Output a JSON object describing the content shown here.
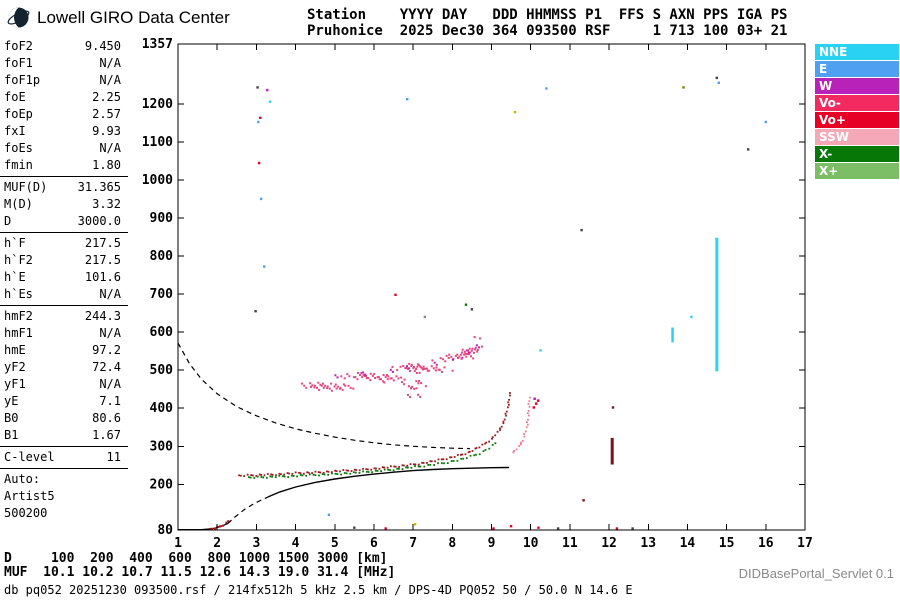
{
  "brand": {
    "title": "Lowell GIRO Data Center"
  },
  "station_header": {
    "line1": "Station    YYYY DAY   DDD HHMMSS P1  FFS S AXN PPS IGA PS",
    "line2": "Pruhonice  2025 Dec30 364 093500 RSF     1 713 100 03+ 21"
  },
  "params": {
    "groups": [
      {
        "rows": [
          [
            "foF2",
            "9.450"
          ],
          [
            "foF1",
            "N/A"
          ],
          [
            "foF1p",
            "N/A"
          ],
          [
            "foE",
            "2.25"
          ],
          [
            "foEp",
            "2.57"
          ],
          [
            "fxI",
            "9.93"
          ],
          [
            "foEs",
            "N/A"
          ],
          [
            "fmin",
            "1.80"
          ]
        ]
      },
      {
        "rows": [
          [
            "MUF(D)",
            "31.365"
          ],
          [
            "M(D)",
            "3.32"
          ],
          [
            "D",
            "3000.0"
          ]
        ]
      },
      {
        "rows": [
          [
            "h`F",
            "217.5"
          ],
          [
            "h`F2",
            "217.5"
          ],
          [
            "h`E",
            "101.6"
          ],
          [
            "h`Es",
            "N/A"
          ]
        ]
      },
      {
        "rows": [
          [
            "hmF2",
            "244.3"
          ],
          [
            "hmF1",
            "N/A"
          ],
          [
            "hmE",
            "97.2"
          ],
          [
            "yF2",
            "72.4"
          ],
          [
            "yF1",
            "N/A"
          ],
          [
            "yE",
            "7.1"
          ],
          [
            "B0",
            "80.6"
          ],
          [
            "B1",
            "1.67"
          ]
        ]
      },
      {
        "rows": [
          [
            "C-level",
            "11"
          ]
        ]
      }
    ],
    "auto": [
      "Auto:",
      "Artist5",
      "500200"
    ]
  },
  "legend": {
    "items": [
      {
        "label": "NNE",
        "color": "#29D2F2"
      },
      {
        "label": "E",
        "color": "#4FA0F0"
      },
      {
        "label": "W",
        "color": "#B822B8"
      },
      {
        "label": "Vo-",
        "color": "#F22A60"
      },
      {
        "label": "Vo+",
        "color": "#E60026"
      },
      {
        "label": "SSW",
        "color": "#F4A8B8"
      },
      {
        "label": "X-",
        "color": "#077807"
      },
      {
        "label": "X+",
        "color": "#7CBE66"
      }
    ]
  },
  "muf_table": {
    "d_line": "D     100  200  400  600  800 1000 1500 3000 [km]",
    "muf_line": "MUF  10.1 10.2 10.7 11.5 12.6 14.3 19.0 31.4 [MHz]"
  },
  "status_line": "db pq052 20251230 093500.rsf / 214fx512h 5 kHz 2.5 km / DPS-4D PQ052 50 / 50.0 N 14.6 E",
  "servlet_label": "DIDBasePortal_Servlet 0.1",
  "chart_data": {
    "type": "scatter",
    "kind": "ionogram",
    "title": "Pruhonice 2025 Dec30 364 093500 RSF",
    "xlabel": "",
    "ylabel": "",
    "x_unit": "MHz",
    "y_unit": "km",
    "xlim": [
      1,
      17
    ],
    "ylim": [
      80,
      1357
    ],
    "x_ticks": [
      1,
      2,
      3,
      4,
      5,
      6,
      7,
      8,
      9,
      10,
      11,
      12,
      13,
      14,
      15,
      16,
      17
    ],
    "y_ticks": [
      1357,
      1200,
      1100,
      1000,
      900,
      800,
      700,
      600,
      500,
      400,
      300,
      200,
      80
    ],
    "grid": false,
    "key_values": {
      "foF2": 9.45,
      "fxI": 9.93,
      "foE": 2.25,
      "hmE": 97.2,
      "hmF2": 244.3,
      "MUF3000": 31.365
    },
    "series": [
      {
        "name": "bottom-baseline",
        "type": "line",
        "color": "#000000",
        "width": 1.3,
        "points": [
          [
            1.0,
            81
          ],
          [
            1.6,
            81
          ],
          [
            1.78,
            82.5
          ],
          [
            1.95,
            85
          ],
          [
            2.1,
            90
          ],
          [
            2.2,
            94
          ],
          [
            2.27,
            97
          ]
        ]
      },
      {
        "name": "E-region-echo",
        "type": "dots",
        "color": "#B01515",
        "size": 2,
        "step": 2.5,
        "points": [
          [
            1.82,
            81
          ],
          [
            1.95,
            84
          ],
          [
            2.05,
            88
          ],
          [
            2.15,
            93
          ],
          [
            2.22,
            98
          ],
          [
            2.28,
            103
          ]
        ]
      },
      {
        "name": "valley-model-dashed",
        "type": "dashed",
        "color": "#000000",
        "width": 1.2,
        "points": [
          [
            2.27,
            97
          ],
          [
            2.45,
            114
          ],
          [
            2.7,
            134
          ],
          [
            2.95,
            150
          ],
          [
            3.15,
            160
          ],
          [
            3.3,
            167
          ]
        ]
      },
      {
        "name": "true-height-profile",
        "type": "line",
        "color": "#000000",
        "width": 1.4,
        "points": [
          [
            3.3,
            167
          ],
          [
            3.6,
            180
          ],
          [
            4.0,
            193
          ],
          [
            4.5,
            205
          ],
          [
            5.0,
            214
          ],
          [
            5.5,
            221
          ],
          [
            6.0,
            227
          ],
          [
            6.5,
            232
          ],
          [
            7.0,
            236
          ],
          [
            7.5,
            239
          ],
          [
            8.0,
            241
          ],
          [
            8.5,
            242.5
          ],
          [
            9.0,
            243.6
          ],
          [
            9.45,
            244.3
          ]
        ]
      },
      {
        "name": "transmission-curve-dashed",
        "type": "dashed",
        "color": "#000000",
        "width": 1.2,
        "points": [
          [
            1.0,
            571
          ],
          [
            1.3,
            516
          ],
          [
            1.6,
            476
          ],
          [
            2.0,
            438
          ],
          [
            2.5,
            404
          ],
          [
            3.0,
            380
          ],
          [
            3.5,
            361
          ],
          [
            4.0,
            346
          ],
          [
            4.5,
            334
          ],
          [
            5.0,
            324
          ],
          [
            5.5,
            316
          ],
          [
            6.0,
            309
          ],
          [
            6.5,
            304
          ],
          [
            7.0,
            300
          ],
          [
            7.5,
            297
          ],
          [
            8.0,
            295
          ],
          [
            8.45,
            294
          ]
        ]
      },
      {
        "name": "F-trace-ordinary",
        "type": "dots",
        "color": "#9E1B1B",
        "size": 1.8,
        "step": 2.8,
        "points": [
          [
            2.55,
            222
          ],
          [
            3.0,
            224
          ],
          [
            3.5,
            226
          ],
          [
            4.0,
            229
          ],
          [
            4.5,
            231
          ],
          [
            5.0,
            234
          ],
          [
            5.5,
            237
          ],
          [
            6.0,
            241
          ],
          [
            6.5,
            246
          ],
          [
            7.0,
            252
          ],
          [
            7.5,
            260
          ],
          [
            8.0,
            271
          ],
          [
            8.4,
            283
          ],
          [
            8.7,
            298
          ],
          [
            9.0,
            318
          ],
          [
            9.2,
            342
          ],
          [
            9.32,
            365
          ],
          [
            9.4,
            392
          ],
          [
            9.44,
            416
          ],
          [
            9.47,
            440
          ]
        ]
      },
      {
        "name": "F-trace-x-minus",
        "type": "dots",
        "color": "#077807",
        "size": 1.8,
        "step": 3.2,
        "points": [
          [
            2.8,
            217
          ],
          [
            3.5,
            220
          ],
          [
            4.2,
            223
          ],
          [
            5.0,
            227
          ],
          [
            5.8,
            232
          ],
          [
            6.5,
            239
          ],
          [
            7.2,
            247
          ],
          [
            7.8,
            256
          ],
          [
            8.3,
            267
          ],
          [
            8.7,
            281
          ],
          [
            8.95,
            295
          ],
          [
            9.1,
            308
          ]
        ]
      },
      {
        "name": "X-trace-tip",
        "type": "dots",
        "color": "#E87F93",
        "size": 1.8,
        "step": 3,
        "points": [
          [
            9.55,
            282
          ],
          [
            9.7,
            298
          ],
          [
            9.8,
            316
          ],
          [
            9.88,
            340
          ],
          [
            9.93,
            372
          ],
          [
            9.96,
            402
          ],
          [
            9.98,
            428
          ]
        ]
      },
      {
        "name": "X-trace-tip-red",
        "type": "specks",
        "size": 2.5,
        "points": [
          [
            10.08,
            402,
            "#E60026"
          ],
          [
            10.14,
            412,
            "#E60026"
          ],
          [
            10.19,
            420,
            "#E60026"
          ],
          [
            10.1,
            425,
            "#B822B8"
          ]
        ]
      },
      {
        "name": "F-second-order-cloud",
        "type": "cloud",
        "color": "#E8447E",
        "size": 2,
        "spray": 3,
        "points": [
          [
            4.3,
            448
          ],
          [
            4.4,
            452
          ],
          [
            4.5,
            456
          ],
          [
            4.6,
            451
          ],
          [
            4.7,
            459
          ],
          [
            4.8,
            462
          ],
          [
            4.9,
            457
          ],
          [
            5.0,
            465
          ],
          [
            5.1,
            468
          ],
          [
            5.2,
            462
          ],
          [
            5.3,
            470
          ],
          [
            5.4,
            473
          ],
          [
            5.5,
            468
          ],
          [
            5.6,
            476
          ],
          [
            5.7,
            479
          ],
          [
            5.8,
            474
          ],
          [
            5.9,
            482
          ],
          [
            6.0,
            485
          ],
          [
            6.1,
            479
          ],
          [
            6.2,
            487
          ],
          [
            6.3,
            490
          ],
          [
            6.4,
            484
          ],
          [
            6.5,
            492
          ],
          [
            6.6,
            495
          ],
          [
            6.7,
            489
          ],
          [
            6.8,
            497
          ],
          [
            6.9,
            500
          ],
          [
            7.0,
            495
          ],
          [
            7.05,
            503
          ],
          [
            7.1,
            507
          ],
          [
            7.15,
            498
          ],
          [
            7.2,
            510
          ],
          [
            7.3,
            504
          ],
          [
            7.4,
            512
          ],
          [
            7.5,
            516
          ],
          [
            7.6,
            509
          ],
          [
            7.7,
            518
          ],
          [
            7.8,
            521
          ],
          [
            7.9,
            515
          ],
          [
            8.0,
            524
          ],
          [
            8.1,
            527
          ],
          [
            8.2,
            532
          ],
          [
            8.3,
            538
          ],
          [
            8.35,
            546
          ],
          [
            8.4,
            551
          ],
          [
            8.45,
            542
          ],
          [
            8.5,
            557
          ],
          [
            8.55,
            562
          ],
          [
            8.6,
            567
          ],
          [
            8.65,
            573
          ]
        ]
      },
      {
        "name": "F-second-order-magenta",
        "type": "cloud",
        "color": "#B822B8",
        "size": 2,
        "spray": 2,
        "points": [
          [
            5.15,
            470
          ],
          [
            5.75,
            480
          ],
          [
            6.35,
            490
          ],
          [
            6.95,
            502
          ],
          [
            7.55,
            514
          ],
          [
            8.15,
            530
          ],
          [
            8.45,
            552
          ],
          [
            8.6,
            568
          ]
        ]
      },
      {
        "name": "second-order-lower-branch",
        "type": "cloud",
        "color": "#E8447E",
        "size": 2,
        "spray": 2,
        "points": [
          [
            6.85,
            452
          ],
          [
            6.92,
            444
          ],
          [
            7.0,
            460
          ],
          [
            7.08,
            448
          ],
          [
            7.15,
            466
          ],
          [
            7.22,
            455
          ],
          [
            6.95,
            435
          ],
          [
            7.1,
            438
          ]
        ]
      },
      {
        "name": "rfi-line-14-75",
        "type": "vline",
        "color": "#29D2F2",
        "x": 14.75,
        "y1": 497,
        "y2": 848,
        "width": 3
      },
      {
        "name": "rfi-line-13-6",
        "type": "vline",
        "color": "#29D2F2",
        "x": 13.62,
        "y1": 573,
        "y2": 612,
        "width": 2.5
      },
      {
        "name": "rfi-line-12-1",
        "type": "vline",
        "color": "#7E1020",
        "x": 12.08,
        "y1": 252,
        "y2": 322,
        "width": 3
      },
      {
        "name": "noise-specks",
        "type": "specks",
        "size": 2.4,
        "points": [
          [
            3.03,
            1243,
            "#444444"
          ],
          [
            3.05,
            1152,
            "#4FA0F0"
          ],
          [
            3.1,
            1163,
            "#E60026"
          ],
          [
            3.07,
            1044,
            "#E60026"
          ],
          [
            3.12,
            950,
            "#4FA0F0"
          ],
          [
            3.2,
            772,
            "#4FA0F0"
          ],
          [
            3.28,
            1236,
            "#B822B8"
          ],
          [
            2.98,
            655,
            "#444444"
          ],
          [
            3.35,
            1205,
            "#29D2F2"
          ],
          [
            6.55,
            698,
            "#E60026"
          ],
          [
            6.85,
            1212,
            "#4FA0F0"
          ],
          [
            7.3,
            640,
            "#888888"
          ],
          [
            9.6,
            1178,
            "#C8B400"
          ],
          [
            10.25,
            552,
            "#29D2F2"
          ],
          [
            10.4,
            1240,
            "#4FA0F0"
          ],
          [
            11.3,
            868,
            "#444444"
          ],
          [
            13.9,
            1243,
            "#808000"
          ],
          [
            14.1,
            640,
            "#29D2F2"
          ],
          [
            14.75,
            1268,
            "#444444"
          ],
          [
            14.8,
            1255,
            "#4FA0F0"
          ],
          [
            16.0,
            1152,
            "#4FA0F0"
          ],
          [
            15.55,
            1080,
            "#444444"
          ],
          [
            8.35,
            672,
            "#077807"
          ],
          [
            8.5,
            660,
            "#444444"
          ],
          [
            4.85,
            120,
            "#4FA0F0"
          ],
          [
            5.5,
            86,
            "#444444"
          ],
          [
            6.3,
            84,
            "#E60026"
          ],
          [
            7.05,
            95,
            "#C8B400"
          ],
          [
            9.05,
            84,
            "#E60026"
          ],
          [
            9.5,
            90,
            "#E60026"
          ],
          [
            10.2,
            86,
            "#E60026"
          ],
          [
            10.7,
            84,
            "#444444"
          ],
          [
            11.35,
            158,
            "#7E1020"
          ],
          [
            12.2,
            84,
            "#E60026"
          ],
          [
            12.1,
            402,
            "#7E1020"
          ],
          [
            12.6,
            84,
            "#444444"
          ]
        ]
      }
    ]
  }
}
